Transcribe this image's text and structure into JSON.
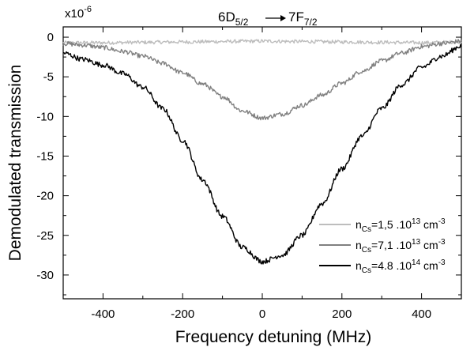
{
  "chart_data": {
    "type": "line",
    "title": {
      "lower_label": "6D",
      "lower_sub": "5/2",
      "upper_label": "7F",
      "upper_sub": "7/2"
    },
    "xlabel": "Frequency detuning (MHz)",
    "ylabel": "Demodulated transmission",
    "y_multiplier": {
      "base": "x10",
      "exponent": "-6"
    },
    "xlim": [
      -500,
      500
    ],
    "ylim": [
      -33,
      1.3
    ],
    "x_ticks": [
      -400,
      -200,
      0,
      200,
      400
    ],
    "x_tick_labels": [
      "-400",
      "-200",
      "0",
      "200",
      "400"
    ],
    "y_ticks": [
      0,
      -5,
      -10,
      -15,
      -20,
      -25,
      -30
    ],
    "y_tick_labels": [
      "0",
      "-5",
      "-10",
      "-15",
      "-20",
      "-25",
      "-30"
    ],
    "grid": false,
    "legend_position": "bottom-right",
    "series": [
      {
        "name": {
          "prefix": "n",
          "sub": "Cs",
          "value": "=1,5 .10",
          "exp": "13",
          "unit": " cm",
          "unit_exp": "-3"
        },
        "color": "#bdbdbd",
        "x": [
          -500,
          -400,
          -300,
          -200,
          -100,
          0,
          100,
          200,
          300,
          400,
          500
        ],
        "y": [
          -0.7,
          -0.7,
          -0.65,
          -0.6,
          -0.55,
          -0.5,
          -0.55,
          -0.6,
          -0.65,
          -0.7,
          -0.6
        ]
      },
      {
        "name": {
          "prefix": "n",
          "sub": "Cs",
          "value": "=7,1 .10",
          "exp": "13",
          "unit": " cm",
          "unit_exp": "-3"
        },
        "color": "#808080",
        "x": [
          -500,
          -450,
          -400,
          -350,
          -300,
          -250,
          -200,
          -150,
          -100,
          -50,
          0,
          50,
          100,
          150,
          200,
          250,
          300,
          350,
          400,
          450,
          500
        ],
        "y": [
          -0.8,
          -1.0,
          -1.3,
          -1.8,
          -2.4,
          -3.3,
          -4.5,
          -5.9,
          -7.5,
          -9.3,
          -10.2,
          -9.7,
          -8.6,
          -7.3,
          -5.8,
          -4.3,
          -3.0,
          -2.0,
          -1.2,
          -0.8,
          -0.5
        ]
      },
      {
        "name": {
          "prefix": "n",
          "sub": "Cs",
          "value": "=4.8 .10",
          "exp": "14",
          "unit": " cm",
          "unit_exp": "-3"
        },
        "color": "#000000",
        "x": [
          -500,
          -450,
          -400,
          -350,
          -300,
          -250,
          -200,
          -150,
          -100,
          -50,
          0,
          50,
          100,
          150,
          200,
          250,
          300,
          350,
          400,
          450,
          500
        ],
        "y": [
          -2.0,
          -2.8,
          -3.5,
          -4.6,
          -6.3,
          -9.0,
          -13.0,
          -18.0,
          -22.6,
          -26.5,
          -28.3,
          -27.5,
          -25.0,
          -21.0,
          -16.6,
          -12.5,
          -9.0,
          -6.0,
          -3.8,
          -2.4,
          -1.1
        ]
      }
    ]
  }
}
